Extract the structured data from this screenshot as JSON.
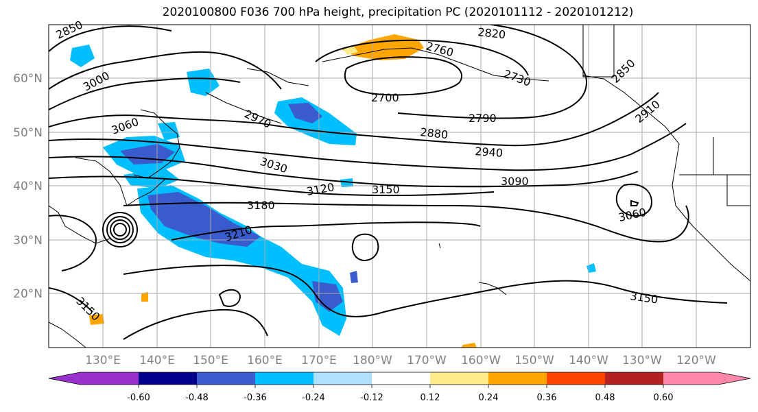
{
  "title": "2020100800 F036 700 hPa height, precipitation PC (2020101112 - 2020101212)",
  "lat_labels": [
    "60°N",
    "50°N",
    "40°N",
    "30°N",
    "20°N"
  ],
  "lon_labels": [
    "130°E",
    "140°E",
    "150°E",
    "160°E",
    "170°E",
    "180°W",
    "170°W",
    "160°W",
    "150°W",
    "140°W",
    "130°W",
    "120°W"
  ],
  "contour_labels": [
    "2850",
    "3000",
    "3060",
    "2970",
    "3030",
    "3120",
    "3150",
    "3180",
    "3210",
    "2820",
    "2760",
    "2730",
    "2700",
    "2790",
    "2880",
    "2940",
    "3090",
    "2850",
    "2910",
    "3060",
    "3150",
    "3150"
  ],
  "colorbar": {
    "colors": [
      "#9932cc",
      "#00008b",
      "#3a5bcc",
      "#00bfff",
      "#b0e0ff",
      "#ffffff",
      "#ffeb8a",
      "#ffa500",
      "#ff4500",
      "#b22222",
      "#ff88aa"
    ],
    "ticks": [
      "-0.60",
      "-0.48",
      "-0.36",
      "-0.24",
      "-0.12",
      "0.12",
      "0.24",
      "0.36",
      "0.48",
      "0.60"
    ]
  }
}
